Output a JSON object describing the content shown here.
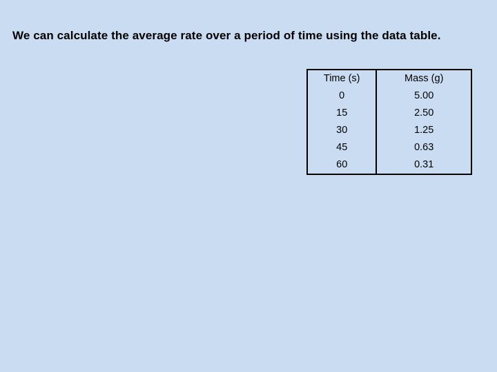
{
  "title": "We can calculate the average rate over a period of time using the data table.",
  "table": {
    "headers": [
      "Time (s)",
      "Mass (g)"
    ],
    "rows": [
      [
        "0",
        "5.00"
      ],
      [
        "15",
        "2.50"
      ],
      [
        "30",
        "1.25"
      ],
      [
        "45",
        "0.63"
      ],
      [
        "60",
        "0.31"
      ]
    ]
  },
  "chart_data": {
    "type": "table",
    "columns": [
      "Time (s)",
      "Mass (g)"
    ],
    "x": [
      0,
      15,
      30,
      45,
      60
    ],
    "series": [
      {
        "name": "Mass (g)",
        "values": [
          5.0,
          2.5,
          1.25,
          0.63,
          0.31
        ]
      }
    ]
  }
}
